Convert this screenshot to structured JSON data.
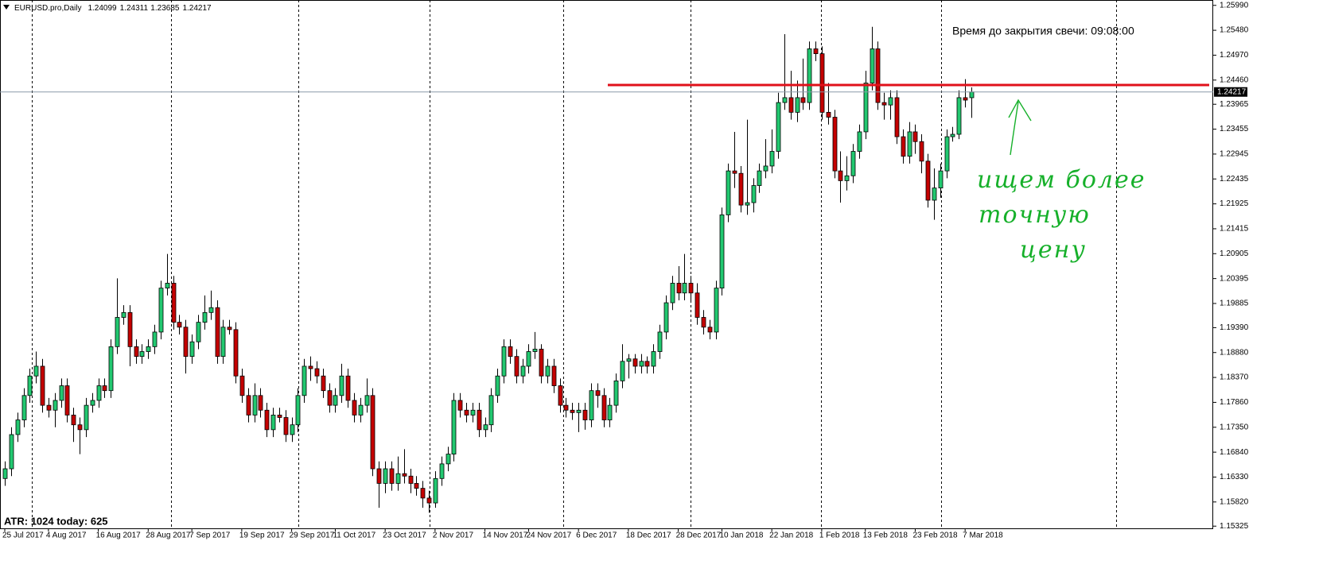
{
  "chart_data": {
    "type": "candlestick",
    "symbol": "EURUSD.pro,Daily",
    "timer": "Время до закрытия свечи: 09:08:00",
    "indicator": "ATR: 1024  today: 625",
    "annotation": [
      "ищем более",
      "точную",
      "цену"
    ],
    "annotation_color": "#16b02a",
    "bull_color": "#22c870",
    "bear_color": "#c40000",
    "red_line": {
      "value": 1.2436,
      "color": "#e0101a"
    },
    "ylim": [
      1.1528,
      1.261
    ],
    "yticks": [
      {
        "value": 1.2599,
        "label": "1.25990"
      },
      {
        "value": 1.2548,
        "label": "1.25480"
      },
      {
        "value": 1.2497,
        "label": "1.24970"
      },
      {
        "value": 1.2446,
        "label": "1.24460"
      },
      {
        "value": 1.23965,
        "label": "1.23965"
      },
      {
        "value": 1.23455,
        "label": "1.23455"
      },
      {
        "value": 1.22945,
        "label": "1.22945"
      },
      {
        "value": 1.22435,
        "label": "1.22435"
      },
      {
        "value": 1.21925,
        "label": "1.21925"
      },
      {
        "value": 1.21415,
        "label": "1.21415"
      },
      {
        "value": 1.20905,
        "label": "1.20905"
      },
      {
        "value": 1.20395,
        "label": "1.20395"
      },
      {
        "value": 1.19885,
        "label": "1.19885"
      },
      {
        "value": 1.1939,
        "label": "1.19390"
      },
      {
        "value": 1.1888,
        "label": "1.18880"
      },
      {
        "value": 1.1837,
        "label": "1.18370"
      },
      {
        "value": 1.1786,
        "label": "1.17860"
      },
      {
        "value": 1.1735,
        "label": "1.17350"
      },
      {
        "value": 1.1684,
        "label": "1.16840"
      },
      {
        "value": 1.1633,
        "label": "1.16330"
      },
      {
        "value": 1.1582,
        "label": "1.15820"
      },
      {
        "value": 1.15325,
        "label": "1.15325"
      }
    ],
    "categories": [
      "25 Jul 2017",
      null,
      null,
      null,
      null,
      null,
      null,
      "4 Aug 2017",
      null,
      null,
      null,
      null,
      null,
      null,
      null,
      "16 Aug 2017",
      null,
      null,
      null,
      null,
      null,
      null,
      null,
      "28 Aug 2017",
      null,
      null,
      null,
      null,
      null,
      null,
      "7 Sep 2017",
      null,
      null,
      null,
      null,
      null,
      null,
      null,
      "19 Sep 2017",
      null,
      null,
      null,
      null,
      null,
      null,
      null,
      "29 Sep 2017",
      null,
      null,
      null,
      null,
      null,
      null,
      "11 Oct 2017",
      null,
      null,
      null,
      null,
      null,
      null,
      null,
      "23 Oct 2017",
      null,
      null,
      null,
      null,
      null,
      null,
      null,
      "2 Nov 2017",
      null,
      null,
      null,
      null,
      null,
      null,
      null,
      "14 Nov 2017",
      null,
      null,
      null,
      null,
      null,
      null,
      "24 Nov 2017",
      null,
      null,
      null,
      null,
      null,
      null,
      null,
      "6 Dec 2017",
      null,
      null,
      null,
      null,
      null,
      null,
      null,
      "18 Dec 2017",
      null,
      null,
      null,
      null,
      null,
      null,
      null,
      "28 Dec 2017",
      null,
      null,
      null,
      null,
      null,
      null,
      "10 Jan 2018",
      null,
      null,
      null,
      null,
      null,
      null,
      null,
      "22 Jan 2018",
      null,
      null,
      null,
      null,
      null,
      null,
      null,
      "1 Feb 2018",
      null,
      null,
      null,
      null,
      null,
      null,
      "13 Feb 2018",
      null,
      null,
      null,
      null,
      null,
      null,
      null,
      "23 Feb 2018",
      null,
      null,
      null,
      null,
      null,
      null,
      null,
      "7 Mar 2018",
      null
    ],
    "candles": [
      [
        1.163,
        1.1665,
        1.1615,
        1.165
      ],
      [
        1.165,
        1.1735,
        1.1635,
        1.172
      ],
      [
        1.172,
        1.1765,
        1.1705,
        1.175
      ],
      [
        1.175,
        1.1815,
        1.1735,
        1.18
      ],
      [
        1.18,
        1.1855,
        1.1785,
        1.184
      ],
      [
        1.184,
        1.189,
        1.1825,
        1.186
      ],
      [
        1.186,
        1.1875,
        1.1765,
        1.178
      ],
      [
        1.178,
        1.1795,
        1.1755,
        1.177
      ],
      [
        1.177,
        1.1805,
        1.1735,
        1.179
      ],
      [
        1.179,
        1.1835,
        1.1775,
        1.182
      ],
      [
        1.182,
        1.1835,
        1.1745,
        1.176
      ],
      [
        1.176,
        1.1775,
        1.1705,
        1.174
      ],
      [
        1.174,
        1.1755,
        1.168,
        1.173
      ],
      [
        1.173,
        1.1795,
        1.1715,
        1.178
      ],
      [
        1.178,
        1.1805,
        1.1765,
        1.179
      ],
      [
        1.179,
        1.1835,
        1.1775,
        1.182
      ],
      [
        1.182,
        1.1835,
        1.1795,
        1.181
      ],
      [
        1.181,
        1.1915,
        1.1795,
        1.19
      ],
      [
        1.19,
        1.204,
        1.1885,
        1.196
      ],
      [
        1.196,
        1.1985,
        1.1945,
        1.197
      ],
      [
        1.197,
        1.1985,
        1.186,
        1.19
      ],
      [
        1.19,
        1.1915,
        1.1865,
        1.188
      ],
      [
        1.188,
        1.1905,
        1.1865,
        1.189
      ],
      [
        1.189,
        1.1915,
        1.1875,
        1.19
      ],
      [
        1.19,
        1.1945,
        1.1885,
        1.193
      ],
      [
        1.193,
        1.2035,
        1.1915,
        1.202
      ],
      [
        1.202,
        1.209,
        1.2005,
        1.203
      ],
      [
        1.203,
        1.2045,
        1.1935,
        1.195
      ],
      [
        1.195,
        1.1965,
        1.1925,
        1.194
      ],
      [
        1.194,
        1.1955,
        1.1845,
        1.188
      ],
      [
        1.188,
        1.1925,
        1.1865,
        1.191
      ],
      [
        1.191,
        1.1965,
        1.1895,
        1.195
      ],
      [
        1.195,
        1.2005,
        1.1935,
        1.197
      ],
      [
        1.197,
        1.2015,
        1.1955,
        1.198
      ],
      [
        1.198,
        1.1995,
        1.1865,
        1.188
      ],
      [
        1.188,
        1.1955,
        1.1865,
        1.194
      ],
      [
        1.194,
        1.1955,
        1.1925,
        1.1935
      ],
      [
        1.1935,
        1.195,
        1.1825,
        1.184
      ],
      [
        1.184,
        1.1855,
        1.1785,
        1.18
      ],
      [
        1.18,
        1.1815,
        1.1745,
        1.176
      ],
      [
        1.176,
        1.1825,
        1.1745,
        1.18
      ],
      [
        1.18,
        1.1815,
        1.1755,
        1.177
      ],
      [
        1.177,
        1.1785,
        1.1715,
        1.173
      ],
      [
        1.173,
        1.1775,
        1.1715,
        1.176
      ],
      [
        1.176,
        1.1775,
        1.1745,
        1.1755
      ],
      [
        1.1755,
        1.177,
        1.1705,
        1.172
      ],
      [
        1.172,
        1.1755,
        1.1705,
        1.174
      ],
      [
        1.174,
        1.1815,
        1.1725,
        1.18
      ],
      [
        1.18,
        1.1875,
        1.1785,
        1.186
      ],
      [
        1.186,
        1.188,
        1.183,
        1.1855
      ],
      [
        1.1855,
        1.187,
        1.1825,
        1.184
      ],
      [
        1.184,
        1.1855,
        1.1795,
        1.181
      ],
      [
        1.181,
        1.1825,
        1.1765,
        1.178
      ],
      [
        1.178,
        1.1815,
        1.1765,
        1.18
      ],
      [
        1.18,
        1.1865,
        1.1785,
        1.184
      ],
      [
        1.184,
        1.1855,
        1.1775,
        1.179
      ],
      [
        1.179,
        1.1805,
        1.1745,
        1.176
      ],
      [
        1.176,
        1.1795,
        1.1745,
        1.178
      ],
      [
        1.178,
        1.1835,
        1.1765,
        1.18
      ],
      [
        1.18,
        1.1815,
        1.1635,
        1.165
      ],
      [
        1.165,
        1.1665,
        1.157,
        1.162
      ],
      [
        1.162,
        1.1665,
        1.16,
        1.165
      ],
      [
        1.165,
        1.1665,
        1.1605,
        1.162
      ],
      [
        1.162,
        1.1675,
        1.1605,
        1.164
      ],
      [
        1.164,
        1.169,
        1.162,
        1.1635
      ],
      [
        1.1635,
        1.165,
        1.16,
        1.162
      ],
      [
        1.162,
        1.1635,
        1.1595,
        1.161
      ],
      [
        1.161,
        1.1625,
        1.157,
        1.159
      ],
      [
        1.159,
        1.1605,
        1.156,
        1.158
      ],
      [
        1.158,
        1.1645,
        1.157,
        1.163
      ],
      [
        1.163,
        1.1675,
        1.1615,
        1.166
      ],
      [
        1.166,
        1.1695,
        1.1645,
        1.168
      ],
      [
        1.168,
        1.1805,
        1.1665,
        1.179
      ],
      [
        1.179,
        1.1805,
        1.1755,
        1.177
      ],
      [
        1.177,
        1.1785,
        1.1745,
        1.176
      ],
      [
        1.176,
        1.1785,
        1.1745,
        1.177
      ],
      [
        1.177,
        1.1785,
        1.1715,
        1.173
      ],
      [
        1.173,
        1.1755,
        1.1715,
        1.174
      ],
      [
        1.174,
        1.1815,
        1.1725,
        1.18
      ],
      [
        1.18,
        1.1855,
        1.1785,
        1.184
      ],
      [
        1.184,
        1.1915,
        1.1825,
        1.19
      ],
      [
        1.19,
        1.1915,
        1.1865,
        1.188
      ],
      [
        1.188,
        1.1895,
        1.1825,
        1.184
      ],
      [
        1.184,
        1.1875,
        1.1825,
        1.186
      ],
      [
        1.186,
        1.1905,
        1.1845,
        1.189
      ],
      [
        1.189,
        1.193,
        1.1875,
        1.1895
      ],
      [
        1.1895,
        1.1905,
        1.1825,
        1.184
      ],
      [
        1.184,
        1.1875,
        1.1825,
        1.186
      ],
      [
        1.186,
        1.1875,
        1.1805,
        1.182
      ],
      [
        1.182,
        1.1835,
        1.1765,
        1.178
      ],
      [
        1.178,
        1.1795,
        1.1755,
        1.177
      ],
      [
        1.177,
        1.1785,
        1.175,
        1.1765
      ],
      [
        1.1765,
        1.1785,
        1.1725,
        1.177
      ],
      [
        1.177,
        1.1785,
        1.173,
        1.175
      ],
      [
        1.175,
        1.1825,
        1.1735,
        1.181
      ],
      [
        1.181,
        1.1825,
        1.1775,
        1.18
      ],
      [
        1.18,
        1.1815,
        1.1735,
        1.175
      ],
      [
        1.175,
        1.1795,
        1.1735,
        1.178
      ],
      [
        1.178,
        1.1845,
        1.1765,
        1.183
      ],
      [
        1.183,
        1.1905,
        1.1815,
        1.187
      ],
      [
        1.187,
        1.1885,
        1.1835,
        1.1875
      ],
      [
        1.1875,
        1.1885,
        1.1845,
        1.186
      ],
      [
        1.186,
        1.1885,
        1.1845,
        1.187
      ],
      [
        1.187,
        1.188,
        1.1845,
        1.186
      ],
      [
        1.186,
        1.1905,
        1.1845,
        1.189
      ],
      [
        1.189,
        1.1945,
        1.1875,
        1.193
      ],
      [
        1.193,
        1.2005,
        1.1915,
        1.199
      ],
      [
        1.199,
        1.2045,
        1.1975,
        1.203
      ],
      [
        1.203,
        1.2065,
        1.1995,
        1.201
      ],
      [
        1.201,
        1.209,
        1.1995,
        1.203
      ],
      [
        1.203,
        1.2045,
        1.1995,
        1.201
      ],
      [
        1.201,
        1.203,
        1.1945,
        1.196
      ],
      [
        1.196,
        1.1975,
        1.1925,
        1.194
      ],
      [
        1.194,
        1.1955,
        1.1915,
        1.193
      ],
      [
        1.193,
        1.2035,
        1.1915,
        1.202
      ],
      [
        1.202,
        1.2185,
        1.2005,
        1.217
      ],
      [
        1.217,
        1.2275,
        1.2155,
        1.226
      ],
      [
        1.226,
        1.234,
        1.2225,
        1.2255
      ],
      [
        1.2255,
        1.227,
        1.2175,
        1.219
      ],
      [
        1.219,
        1.2365,
        1.217,
        1.2195
      ],
      [
        1.2195,
        1.2245,
        1.2175,
        1.223
      ],
      [
        1.223,
        1.2275,
        1.2215,
        1.226
      ],
      [
        1.226,
        1.2325,
        1.2245,
        1.227
      ],
      [
        1.227,
        1.2345,
        1.2255,
        1.23
      ],
      [
        1.23,
        1.242,
        1.2285,
        1.24
      ],
      [
        1.24,
        1.254,
        1.2385,
        1.241
      ],
      [
        1.241,
        1.2465,
        1.2365,
        1.238
      ],
      [
        1.238,
        1.2445,
        1.236,
        1.241
      ],
      [
        1.241,
        1.249,
        1.2385,
        1.24
      ],
      [
        1.24,
        1.2525,
        1.2385,
        1.251
      ],
      [
        1.251,
        1.2525,
        1.2485,
        1.25
      ],
      [
        1.25,
        1.2515,
        1.2365,
        1.238
      ],
      [
        1.238,
        1.244,
        1.2355,
        1.237
      ],
      [
        1.237,
        1.2385,
        1.2245,
        1.226
      ],
      [
        1.226,
        1.23,
        1.2195,
        1.224
      ],
      [
        1.224,
        1.229,
        1.222,
        1.225
      ],
      [
        1.225,
        1.2315,
        1.2235,
        1.23
      ],
      [
        1.23,
        1.2355,
        1.2285,
        1.234
      ],
      [
        1.234,
        1.2465,
        1.2325,
        1.244
      ],
      [
        1.244,
        1.2555,
        1.2425,
        1.251
      ],
      [
        1.251,
        1.2525,
        1.2385,
        1.24
      ],
      [
        1.24,
        1.242,
        1.2365,
        1.2395
      ],
      [
        1.2395,
        1.2425,
        1.2365,
        1.241
      ],
      [
        1.241,
        1.2425,
        1.2315,
        1.233
      ],
      [
        1.233,
        1.2345,
        1.2275,
        1.229
      ],
      [
        1.229,
        1.236,
        1.2275,
        1.234
      ],
      [
        1.234,
        1.2355,
        1.2295,
        1.232
      ],
      [
        1.232,
        1.2335,
        1.2255,
        1.228
      ],
      [
        1.228,
        1.2295,
        1.2185,
        1.22
      ],
      [
        1.22,
        1.2265,
        1.216,
        1.2225
      ],
      [
        1.2225,
        1.2275,
        1.2205,
        1.226
      ],
      [
        1.226,
        1.2345,
        1.2245,
        1.233
      ],
      [
        1.233,
        1.235,
        1.232,
        1.2335
      ],
      [
        1.2335,
        1.2425,
        1.2325,
        1.241
      ],
      [
        1.241,
        1.2448,
        1.239,
        1.2405
      ],
      [
        1.24099,
        1.24311,
        1.23685,
        1.24217
      ]
    ]
  }
}
